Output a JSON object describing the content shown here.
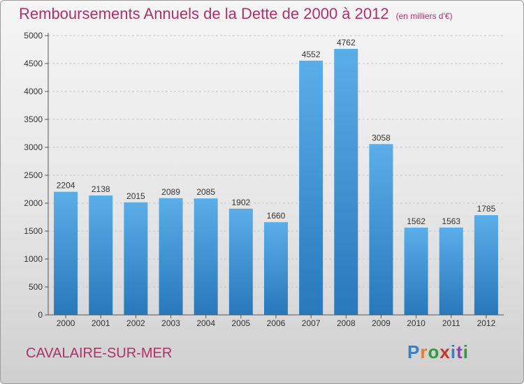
{
  "title": "Remboursements Annuels de la Dette de 2000 à 2012",
  "unit_note": "(en milliers d'€)",
  "city": "CAVALAIRE-SUR-MER",
  "brand": {
    "letters": [
      "P",
      "r",
      "o",
      "x",
      "i",
      "t",
      "i"
    ],
    "colors": [
      "#3a7fc4",
      "#e67e22",
      "#2e9c3a",
      "#c0392b",
      "#3a7fc4",
      "#8e44ad",
      "#2e9c3a"
    ]
  },
  "colors": {
    "title": "#b0306a",
    "bar_light": "#5aaee8",
    "bar_dark": "#2878bb"
  },
  "chart_data": {
    "type": "bar",
    "categories": [
      "2000",
      "2001",
      "2002",
      "2003",
      "2004",
      "2005",
      "2006",
      "2007",
      "2008",
      "2009",
      "2010",
      "2011",
      "2012"
    ],
    "values": [
      2204,
      2138,
      2015,
      2089,
      2085,
      1902,
      1660,
      4552,
      4762,
      3058,
      1562,
      1563,
      1785
    ],
    "ylim": [
      0,
      5000
    ],
    "yticks": [
      0,
      500,
      1000,
      1500,
      2000,
      2500,
      3000,
      3500,
      4000,
      4500,
      5000
    ],
    "grid": true,
    "data_labels": true
  }
}
